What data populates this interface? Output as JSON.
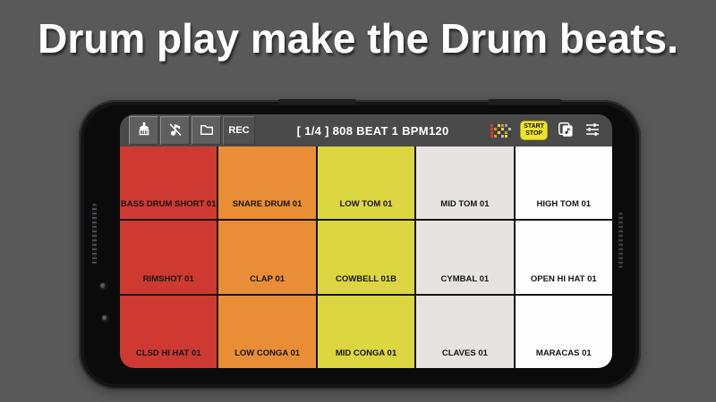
{
  "page": {
    "title": "Drum play make the Drum beats.",
    "background_color": "#59595a"
  },
  "app": {
    "toolbar": {
      "rec_label": "REC",
      "title": "[ 1/4 ] 808 BEAT 1 BPM120",
      "start_label": "START",
      "stop_label": "STOP",
      "accent_yellow": "#efe32d",
      "bar_color": "#4a4a4a",
      "icons": [
        "brush-icon",
        "muted-note-icon",
        "folder-icon",
        "pattern-grid-icon",
        "copy-note-icon",
        "tune-sliders-icon"
      ],
      "pattern_icon": {
        "cells": [
          [
            "#d43b2e",
            "#3f3f3f",
            "#e0d43c",
            "#e08a2e",
            "#9a9a9a",
            "#3f3f3f"
          ],
          [
            "#d43b2e",
            "#e08a2e",
            "#3f3f3f",
            "#e0d43c",
            "#3f3f3f",
            "#bdbdbd"
          ],
          [
            "#d43b2e",
            "#3f3f3f",
            "#e0d43c",
            "#3f3f3f",
            "#e08a2e",
            "#3f3f3f"
          ],
          [
            "#d43b2e",
            "#e08a2e",
            "#3f3f3f",
            "#bdbdbd",
            "#e0d43c",
            "#3f3f3f"
          ]
        ]
      }
    },
    "pads": {
      "column_colors": [
        "#ce3a31",
        "#e98e36",
        "#dcd641",
        "#e6e4e1",
        "#fdfdfd"
      ],
      "rows": [
        [
          "BASS DRUM SHORT 01",
          "SNARE DRUM 01",
          "LOW TOM 01",
          "MID TOM 01",
          "HIGH TOM 01"
        ],
        [
          "RIMSHOT 01",
          "CLAP 01",
          "COWBELL 01B",
          "CYMBAL 01",
          "OPEN HI HAT 01"
        ],
        [
          "CLSD HI HAT 01",
          "LOW CONGA 01",
          "MID CONGA 01",
          "CLAVES 01",
          "MARACAS 01"
        ]
      ]
    }
  }
}
